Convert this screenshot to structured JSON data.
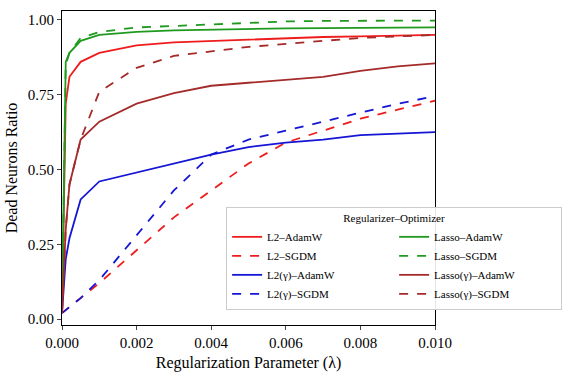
{
  "chart_data": {
    "type": "line",
    "x_label": "Regularization Parameter (λ)",
    "y_label": "Dead Neurons Ratio",
    "legend_title": "Regularizer–Optimizer",
    "legend": "lower right",
    "grid": false,
    "xlim": [
      0,
      0.01
    ],
    "ylim": [
      -0.02,
      1.03
    ],
    "xticks": [
      {
        "value": 0,
        "label": "0.000"
      },
      {
        "value": 0.002,
        "label": "0.002"
      },
      {
        "value": 0.004,
        "label": "0.004"
      },
      {
        "value": 0.006,
        "label": "0.006"
      },
      {
        "value": 0.008,
        "label": "0.008"
      },
      {
        "value": 0.01,
        "label": "0.010"
      }
    ],
    "yticks": [
      {
        "value": 0,
        "label": "0.00"
      },
      {
        "value": 0.25,
        "label": "0.25"
      },
      {
        "value": 0.5,
        "label": "0.50"
      },
      {
        "value": 0.75,
        "label": "0.75"
      },
      {
        "value": 1,
        "label": "1.00"
      }
    ],
    "x": [
      0,
      0.0001,
      0.0002,
      0.0005,
      0.001,
      0.002,
      0.003,
      0.004,
      0.005,
      0.006,
      0.007,
      0.008,
      0.009,
      0.01
    ],
    "series": [
      {
        "name": "L2–AdamW",
        "color": "#ee1c1c",
        "line_style": "solid",
        "values": [
          0.02,
          0.72,
          0.81,
          0.86,
          0.89,
          0.915,
          0.925,
          0.93,
          0.935,
          0.94,
          0.943,
          0.945,
          0.947,
          0.95
        ]
      },
      {
        "name": "L2–SGDM",
        "color": "#ee1c1c",
        "line_style": "dash",
        "values": [
          0.02,
          0.03,
          0.04,
          0.07,
          0.12,
          0.23,
          0.34,
          0.43,
          0.52,
          0.59,
          0.63,
          0.67,
          0.7,
          0.73
        ]
      },
      {
        "name": "L2(γ)–AdamW",
        "color": "#1515d6",
        "line_style": "solid",
        "values": [
          0.02,
          0.2,
          0.27,
          0.4,
          0.46,
          0.49,
          0.52,
          0.55,
          0.575,
          0.59,
          0.6,
          0.615,
          0.62,
          0.625
        ]
      },
      {
        "name": "L2(γ)–SGDM",
        "color": "#1515d6",
        "line_style": "dash",
        "values": [
          0.02,
          0.03,
          0.04,
          0.07,
          0.13,
          0.28,
          0.43,
          0.55,
          0.6,
          0.63,
          0.66,
          0.69,
          0.72,
          0.745
        ]
      },
      {
        "name": "Lasso–AdamW",
        "color": "#1f9a1f",
        "line_style": "solid",
        "values": [
          0.02,
          0.86,
          0.89,
          0.93,
          0.95,
          0.96,
          0.965,
          0.968,
          0.97,
          0.972,
          0.973,
          0.974,
          0.975,
          0.975
        ]
      },
      {
        "name": "Lasso–SGDM",
        "color": "#1f9a1f",
        "line_style": "dash",
        "values": [
          0.02,
          0.85,
          0.89,
          0.94,
          0.96,
          0.975,
          0.98,
          0.985,
          0.99,
          0.995,
          0.997,
          0.998,
          0.998,
          0.998
        ]
      },
      {
        "name": "Lasso(γ)–AdamW",
        "color": "#a52a2a",
        "line_style": "solid",
        "values": [
          0.02,
          0.3,
          0.45,
          0.6,
          0.66,
          0.72,
          0.755,
          0.78,
          0.79,
          0.8,
          0.81,
          0.83,
          0.845,
          0.855
        ]
      },
      {
        "name": "Lasso(γ)–SGDM",
        "color": "#a52a2a",
        "line_style": "dash",
        "values": [
          0.02,
          0.3,
          0.45,
          0.6,
          0.76,
          0.84,
          0.88,
          0.895,
          0.91,
          0.92,
          0.93,
          0.94,
          0.945,
          0.95
        ]
      }
    ]
  }
}
